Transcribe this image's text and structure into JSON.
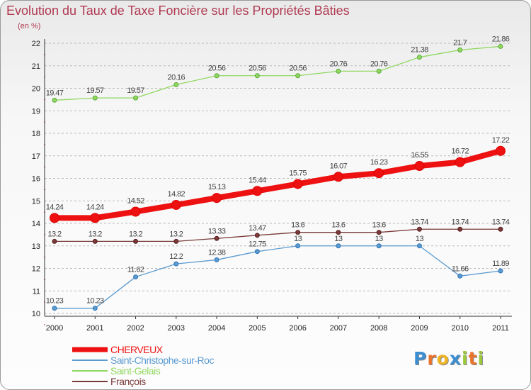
{
  "header": {
    "title": "Evolution du Taux de Taxe Foncière sur les Propriétés Bâties",
    "unit": "(en %)"
  },
  "logo": {
    "letters": [
      "P",
      "r",
      "o",
      "x",
      "i",
      "t",
      "i"
    ],
    "colors": [
      "#3b8ed1",
      "#e9742c",
      "#f0b323",
      "#3b8ed1",
      "#9bc93a",
      "#e9742c",
      "#9bc93a"
    ]
  },
  "chart_data": {
    "type": "line",
    "x": [
      "2000",
      "2001",
      "2002",
      "2003",
      "2004",
      "2005",
      "2006",
      "2007",
      "2008",
      "2009",
      "2010",
      "2011"
    ],
    "ylim": [
      10,
      22
    ],
    "yticks": [
      10,
      11,
      12,
      13,
      14,
      15,
      16,
      17,
      18,
      19,
      20,
      21,
      22
    ],
    "grid": "horizontal dashed",
    "legend_position": "bottom-left",
    "series": [
      {
        "name": "Saint-Christophe-sur-Roc",
        "color": "#5b9bd0",
        "values": [
          10.23,
          10.23,
          11.62,
          12.2,
          12.38,
          12.75,
          13,
          13,
          13,
          13,
          11.66,
          11.89
        ]
      },
      {
        "name": "Saint-Gelais",
        "color": "#90d860",
        "values": [
          19.47,
          19.57,
          19.57,
          20.16,
          20.56,
          20.56,
          20.56,
          20.76,
          20.76,
          21.38,
          21.7,
          21.86
        ]
      },
      {
        "name": "François",
        "color": "#7a3a3a",
        "values": [
          13.2,
          13.2,
          13.2,
          13.2,
          13.33,
          13.47,
          13.6,
          13.6,
          13.6,
          13.74,
          13.74,
          13.74
        ]
      },
      {
        "name": "CHERVEUX",
        "color": "#ee1111",
        "values": [
          14.24,
          14.24,
          14.52,
          14.82,
          15.13,
          15.44,
          15.75,
          16.07,
          16.23,
          16.55,
          16.72,
          17.22
        ]
      }
    ],
    "legend_order": [
      "CHERVEUX",
      "Saint-Christophe-sur-Roc",
      "Saint-Gelais",
      "François"
    ]
  }
}
